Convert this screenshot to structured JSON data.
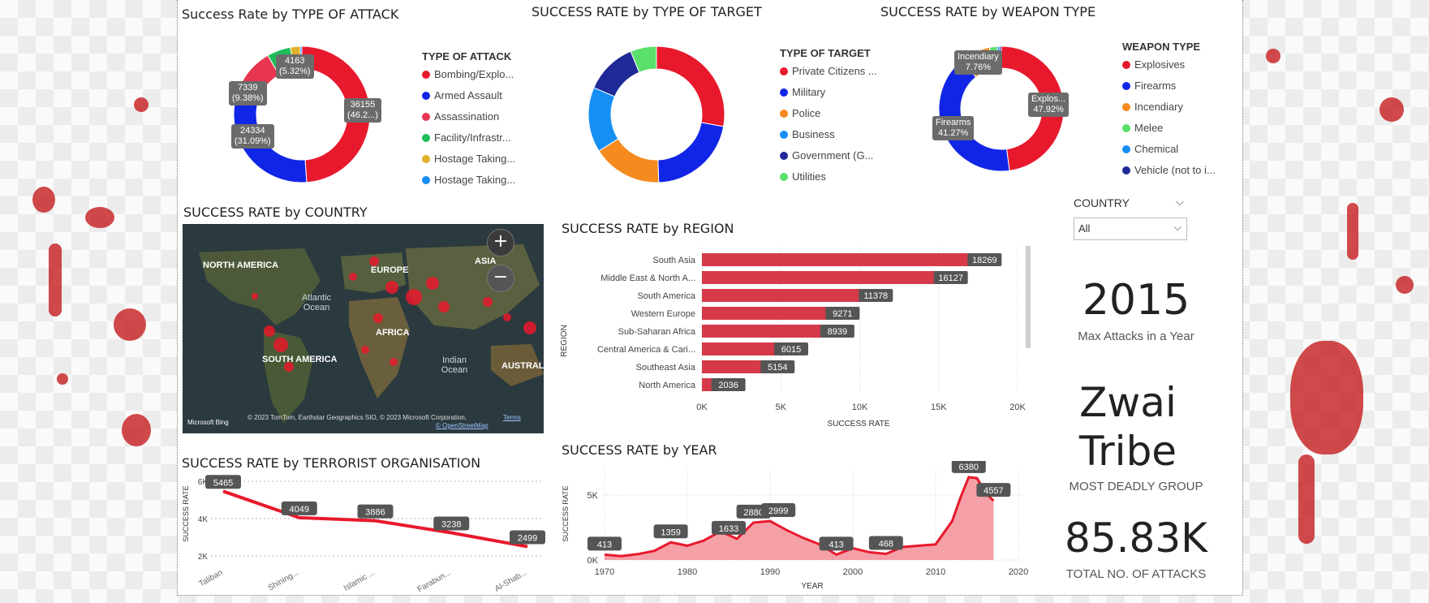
{
  "colors": {
    "red": "#e8192c",
    "blue": "#1125e6",
    "orange": "#f58a1f",
    "skyblue": "#168ff5",
    "navy": "#1f2a98",
    "green": "#1fbd5a",
    "yellow": "#e0b12b",
    "lightgreen": "#5ae06a",
    "crimson": "#e83650",
    "bar": "#d63a48",
    "area": "#f4a0a6",
    "line": "#e8192c"
  },
  "attack_donut": {
    "title": "Success Rate by TYPE OF ATTACK",
    "legend_title": "TYPE OF ATTACK",
    "legend": [
      "Bombing/Explo...",
      "Armed Assault",
      "Assassination",
      "Facility/Infrastr...",
      "Hostage Taking...",
      "Hostage Taking..."
    ],
    "labels": [
      {
        "value": "36155",
        "pct": "(46.2...)"
      },
      {
        "value": "24334",
        "pct": "(31.09%)"
      },
      {
        "value": "7339",
        "pct": "(9.38%)"
      },
      {
        "value": "4163",
        "pct": "(5.32%)"
      }
    ]
  },
  "target_donut": {
    "title": "SUCCESS RATE by TYPE OF TARGET",
    "legend_title": "TYPE OF TARGET",
    "legend": [
      "Private Citizens ...",
      "Military",
      "Police",
      "Business",
      "Government (G...",
      "Utilities"
    ]
  },
  "weapon_donut": {
    "title": "SUCCESS RATE by WEAPON TYPE",
    "legend_title": "WEAPON TYPE",
    "legend": [
      "Explosives",
      "Firearms",
      "Incendiary",
      "Melee",
      "Chemical",
      "Vehicle (not to i..."
    ],
    "labels": [
      {
        "value": "Explos...",
        "pct": "47.92%"
      },
      {
        "value": "Firearms",
        "pct": "41.27%"
      },
      {
        "value": "Incendiary",
        "pct": "7.76%"
      }
    ]
  },
  "map": {
    "title": "SUCCESS RATE by COUNTRY",
    "labels": [
      "NORTH AMERICA",
      "EUROPE",
      "ASIA",
      "AFRICA",
      "SOUTH AMERICA",
      "AUSTRAL"
    ],
    "oceans": [
      "Atlantic Ocean",
      "Indian Ocean"
    ],
    "zoom_in": "+",
    "zoom_out": "−",
    "attribution": "© 2023 TomTom, Earthstar Geographics SIO, © 2023 Microsoft Corporation,",
    "terms": "Terms",
    "osm": "© OpenStreetMap",
    "brand": "Microsoft Bing"
  },
  "slicer": {
    "label": "COUNTRY",
    "value": "All"
  },
  "cards": {
    "max_year": "2015",
    "max_year_label": "Max Attacks in a Year",
    "group_line1": "Zwai",
    "group_line2": "Tribe",
    "group_label": "MOST DEADLY GROUP",
    "total": "85.83K",
    "total_label": "TOTAL NO. OF ATTACKS"
  },
  "chart_data": [
    {
      "type": "pie",
      "title": "Success Rate by TYPE OF ATTACK",
      "categories": [
        "Bombing/Explo...",
        "Armed Assault",
        "Assassination",
        "Facility/Infrastr...",
        "Hostage Taking...",
        "Hostage Taking..."
      ],
      "values": [
        36155,
        24334,
        7339,
        4163,
        1700,
        300
      ]
    },
    {
      "type": "pie",
      "title": "SUCCESS RATE by TYPE OF TARGET",
      "categories": [
        "Private Citizens ...",
        "Military",
        "Police",
        "Business",
        "Government (G...",
        "Utilities"
      ],
      "values": [
        27,
        21,
        16,
        15,
        12,
        6
      ]
    },
    {
      "type": "pie",
      "title": "SUCCESS RATE by WEAPON TYPE",
      "categories": [
        "Explosives",
        "Firearms",
        "Incendiary",
        "Melee",
        "Chemical",
        "Vehicle (not to i..."
      ],
      "values": [
        47.92,
        41.27,
        7.76,
        2.0,
        0.6,
        0.45
      ]
    },
    {
      "type": "bar",
      "orientation": "horizontal",
      "title": "SUCCESS RATE by REGION",
      "xlabel": "SUCCESS RATE",
      "ylabel": "REGION",
      "categories": [
        "South Asia",
        "Middle East & North A...",
        "South America",
        "Western Europe",
        "Sub-Saharan Africa",
        "Central America & Cari...",
        "Southeast Asia",
        "North America"
      ],
      "values": [
        18269,
        16127,
        11378,
        9271,
        8939,
        6015,
        5154,
        2036
      ],
      "xlim": [
        0,
        20000
      ],
      "xticks": [
        "0K",
        "5K",
        "10K",
        "15K",
        "20K"
      ]
    },
    {
      "type": "line",
      "title": "SUCCESS RATE by TERRORIST ORGANISATION",
      "ylabel": "SUCCESS RATE",
      "categories": [
        "Taliban",
        "Shining...",
        "Islamic ...",
        "Farabun...",
        "Al-Shab..."
      ],
      "values": [
        5465,
        4049,
        3886,
        3238,
        2499
      ],
      "ylim": [
        2000,
        6000
      ],
      "yticks": [
        "2K",
        "4K",
        "6K"
      ]
    },
    {
      "type": "area",
      "title": "SUCCESS RATE by YEAR",
      "xlabel": "YEAR",
      "ylabel": "SUCCESS RATE",
      "x": [
        1970,
        1972,
        1974,
        1976,
        1978,
        1980,
        1982,
        1984,
        1986,
        1988,
        1990,
        1992,
        1994,
        1996,
        1998,
        2000,
        2002,
        2004,
        2006,
        2008,
        2010,
        2012,
        2013,
        2014,
        2015,
        2016,
        2017
      ],
      "values": [
        413,
        300,
        450,
        700,
        1359,
        1100,
        1500,
        2200,
        1633,
        2880,
        2999,
        2300,
        1700,
        1200,
        413,
        900,
        600,
        468,
        1000,
        1100,
        1200,
        3000,
        4800,
        6380,
        6300,
        5200,
        4557
      ],
      "xlim": [
        1970,
        2020
      ],
      "ylim": [
        0,
        7000
      ],
      "xticks": [
        "1970",
        "1980",
        "1990",
        "2000",
        "2010",
        "2020"
      ],
      "yticks": [
        "0K",
        "5K"
      ],
      "labels": [
        {
          "x": 1970,
          "text": "413"
        },
        {
          "x": 1978,
          "text": "1359"
        },
        {
          "x": 1985,
          "text": "1633"
        },
        {
          "x": 1988,
          "text": "2880"
        },
        {
          "x": 1991,
          "text": "2999"
        },
        {
          "x": 1998,
          "text": "413"
        },
        {
          "x": 2004,
          "text": "468"
        },
        {
          "x": 2014,
          "text": "6380"
        },
        {
          "x": 2017,
          "text": "4557"
        }
      ]
    }
  ]
}
